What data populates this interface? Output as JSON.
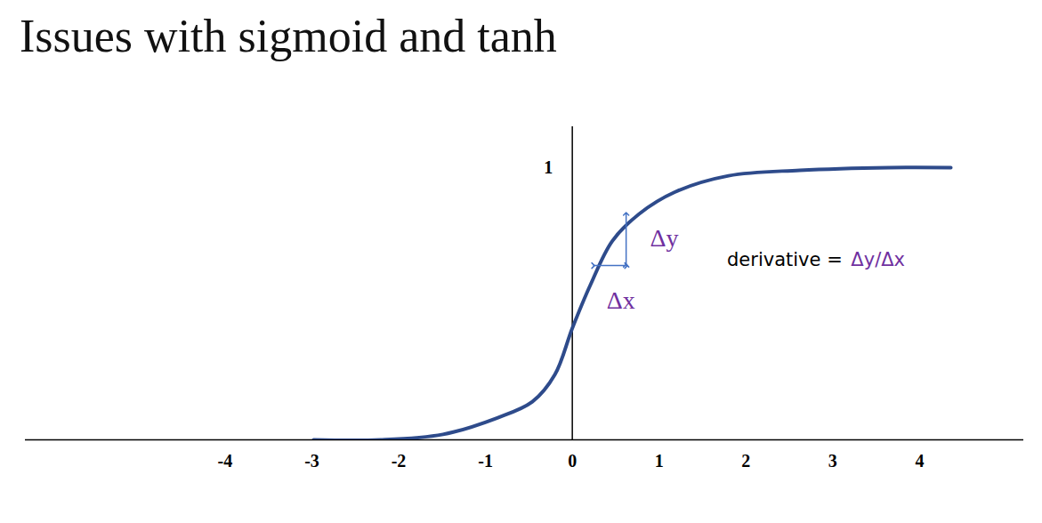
{
  "chart_data": {
    "type": "line",
    "title": "Issues with sigmoid and tanh",
    "x": [
      -2.98,
      -2.21,
      -1.49,
      -0.87,
      -0.46,
      -0.2,
      0,
      0.21,
      0.46,
      0.77,
      1.18,
      1.8,
      2.62,
      3.65,
      4.36
    ],
    "values": [
      0.0,
      0.0,
      0.02,
      0.08,
      0.14,
      0.24,
      0.41,
      0.57,
      0.73,
      0.83,
      0.91,
      0.97,
      0.99,
      1.0,
      1.0
    ],
    "color": "#2e4b8b",
    "xlim": [
      -6.3,
      5.2
    ],
    "ylim": [
      0,
      1.15
    ],
    "xticks": [
      -4,
      -3,
      -2,
      -1,
      0,
      1,
      2,
      3,
      4
    ],
    "yticks": [
      1
    ],
    "annotations": [
      {
        "text": "Δy",
        "x": 1.06,
        "y": 0.74,
        "color": "#7030a0"
      },
      {
        "text": "Δx",
        "x": 0.56,
        "y": 0.51,
        "color": "#7030a0"
      },
      {
        "text": "derivative = ",
        "x": 3.18,
        "y": 0.66,
        "color": "#000000"
      },
      {
        "text": "Δy/Δx",
        "x": 3.21,
        "y": 0.66,
        "color": "#7030a0"
      }
    ],
    "arrows": [
      {
        "x1": 0.24,
        "y1": 0.64,
        "x2": 0.62,
        "y2": 0.64,
        "color": "#4472c4"
      },
      {
        "x1": 0.62,
        "y1": 0.64,
        "x2": 0.62,
        "y2": 0.83,
        "color": "#4472c4"
      }
    ]
  }
}
